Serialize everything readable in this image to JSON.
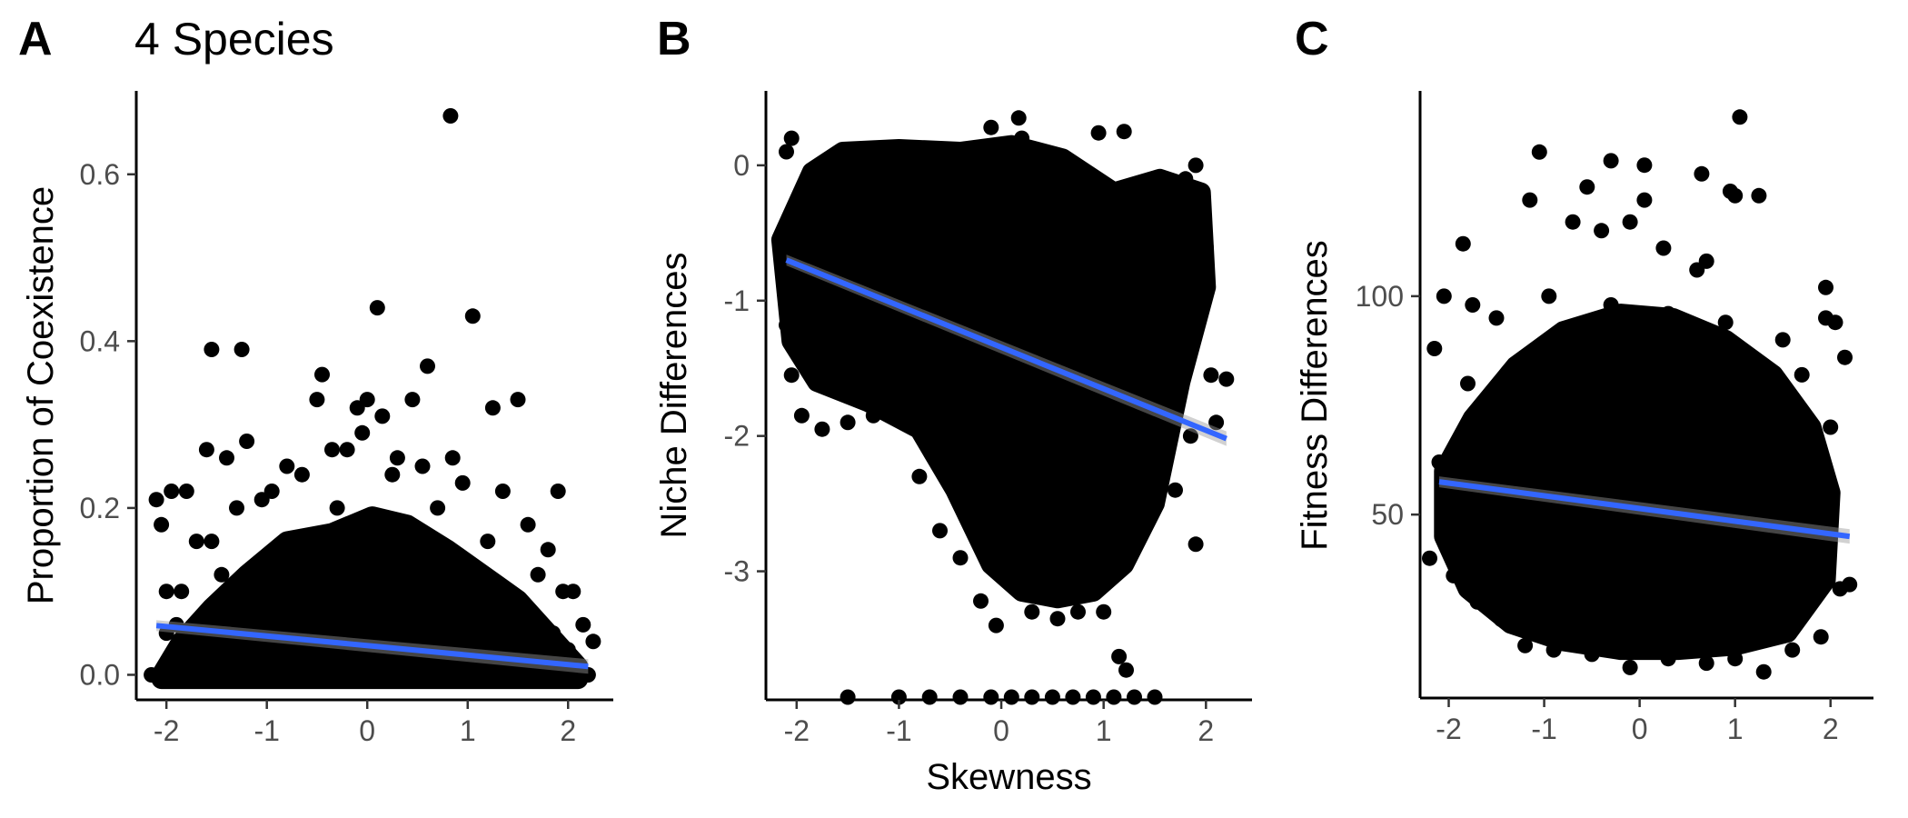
{
  "figure": {
    "title": "4 Species",
    "xlabel": "Skewness"
  },
  "style": {
    "point_color": "#000000",
    "fit_line_color": "#3366FF",
    "ci_band_color": "#999999",
    "axis_color": "#000000",
    "tick_label_color": "#4D4D4D"
  },
  "chart_data": [
    {
      "panel": "A",
      "type": "scatter",
      "title": "4 Species",
      "xlabel": "",
      "ylabel": "Proportion of Coexistence",
      "xlim": [
        -2.3,
        2.45
      ],
      "ylim": [
        -0.03,
        0.7
      ],
      "xticks": [
        -2,
        -1,
        0,
        1,
        2
      ],
      "xtick_labels": [
        "-2",
        "-1",
        "0",
        "1",
        "2"
      ],
      "yticks": [
        0.0,
        0.2,
        0.4,
        0.6
      ],
      "ytick_labels": [
        "0.0",
        "0.2",
        "0.4",
        "0.6"
      ],
      "grid": false,
      "fit_line": {
        "x": [
          -2.1,
          2.2
        ],
        "y": [
          0.059,
          0.01
        ]
      },
      "points": [
        [
          0.83,
          0.67
        ],
        [
          0.1,
          0.44
        ],
        [
          1.05,
          0.43
        ],
        [
          -1.55,
          0.39
        ],
        [
          -1.25,
          0.39
        ],
        [
          -0.45,
          0.36
        ],
        [
          0.6,
          0.37
        ],
        [
          -0.5,
          0.33
        ],
        [
          0.0,
          0.33
        ],
        [
          0.45,
          0.33
        ],
        [
          1.25,
          0.32
        ],
        [
          1.5,
          0.33
        ],
        [
          -0.1,
          0.32
        ],
        [
          0.15,
          0.31
        ],
        [
          -0.05,
          0.29
        ],
        [
          0.85,
          0.26
        ],
        [
          -0.35,
          0.27
        ],
        [
          -0.2,
          0.27
        ],
        [
          -1.6,
          0.27
        ],
        [
          -1.4,
          0.26
        ],
        [
          -1.2,
          0.28
        ],
        [
          1.9,
          0.22
        ],
        [
          -2.1,
          0.21
        ],
        [
          -1.95,
          0.22
        ],
        [
          -1.8,
          0.22
        ],
        [
          0.3,
          0.26
        ],
        [
          0.55,
          0.25
        ],
        [
          -0.8,
          0.25
        ],
        [
          1.35,
          0.22
        ],
        [
          -0.95,
          0.22
        ],
        [
          0.95,
          0.23
        ],
        [
          -1.05,
          0.21
        ],
        [
          -0.65,
          0.24
        ],
        [
          0.25,
          0.24
        ],
        [
          1.6,
          0.18
        ],
        [
          -2.05,
          0.18
        ],
        [
          -1.7,
          0.16
        ],
        [
          -1.55,
          0.16
        ],
        [
          1.7,
          0.12
        ],
        [
          1.8,
          0.15
        ],
        [
          1.95,
          0.1
        ],
        [
          2.05,
          0.1
        ],
        [
          -2.0,
          0.1
        ],
        [
          -1.85,
          0.1
        ],
        [
          2.15,
          0.06
        ],
        [
          2.25,
          0.04
        ],
        [
          -2.0,
          0.05
        ],
        [
          -1.9,
          0.06
        ],
        [
          1.85,
          0.05
        ],
        [
          2.0,
          0.03
        ],
        [
          -2.15,
          0.0
        ],
        [
          2.2,
          0.0
        ],
        [
          -1.75,
          0.03
        ],
        [
          1.55,
          0.02
        ],
        [
          -1.3,
          0.2
        ],
        [
          -0.3,
          0.2
        ],
        [
          0.7,
          0.2
        ],
        [
          0.4,
          0.18
        ],
        [
          1.2,
          0.16
        ],
        [
          -0.6,
          0.14
        ],
        [
          -1.45,
          0.12
        ],
        [
          0.2,
          0.15
        ],
        [
          1.4,
          0.1
        ],
        [
          -1.15,
          0.08
        ]
      ],
      "dense_region": [
        [
          -2.05,
          0.0
        ],
        [
          -1.85,
          0.04
        ],
        [
          -1.55,
          0.08
        ],
        [
          -1.2,
          0.12
        ],
        [
          -0.8,
          0.16
        ],
        [
          -0.35,
          0.17
        ],
        [
          0.05,
          0.19
        ],
        [
          0.4,
          0.18
        ],
        [
          0.8,
          0.15
        ],
        [
          1.15,
          0.12
        ],
        [
          1.5,
          0.09
        ],
        [
          1.8,
          0.05
        ],
        [
          2.1,
          0.01
        ],
        [
          2.1,
          -0.005
        ],
        [
          -2.05,
          -0.005
        ]
      ]
    },
    {
      "panel": "B",
      "type": "scatter",
      "title": "",
      "xlabel": "Skewness",
      "ylabel": "Niche Differences",
      "xlim": [
        -2.3,
        2.45
      ],
      "ylim": [
        -3.95,
        0.55
      ],
      "xticks": [
        -2,
        -1,
        0,
        1,
        2
      ],
      "xtick_labels": [
        "-2",
        "-1",
        "0",
        "1",
        "2"
      ],
      "yticks": [
        0,
        -1,
        -2,
        -3
      ],
      "ytick_labels": [
        "0",
        "-1",
        "-2",
        "-3"
      ],
      "grid": false,
      "fit_line": {
        "x": [
          -2.1,
          2.2
        ],
        "y": [
          -0.7,
          -2.02
        ]
      },
      "points": [
        [
          -2.05,
          0.2
        ],
        [
          -2.1,
          0.1
        ],
        [
          0.17,
          0.35
        ],
        [
          -0.1,
          0.28
        ],
        [
          0.95,
          0.24
        ],
        [
          1.2,
          0.25
        ],
        [
          0.2,
          0.2
        ],
        [
          -2.15,
          -0.6
        ],
        [
          -2.1,
          -1.18
        ],
        [
          -2.05,
          -1.55
        ],
        [
          -1.95,
          -1.85
        ],
        [
          -1.75,
          -1.95
        ],
        [
          -1.5,
          -1.9
        ],
        [
          -1.25,
          -1.85
        ],
        [
          1.15,
          -3.63
        ],
        [
          1.22,
          -3.73
        ],
        [
          1.9,
          -2.8
        ],
        [
          2.05,
          -1.55
        ],
        [
          2.2,
          -1.58
        ],
        [
          1.9,
          0.0
        ],
        [
          1.8,
          -0.1
        ],
        [
          1.95,
          -0.3
        ],
        [
          2.0,
          -0.6
        ],
        [
          -0.2,
          -3.22
        ],
        [
          -0.05,
          -3.4
        ],
        [
          0.3,
          -3.3
        ],
        [
          0.55,
          -3.35
        ],
        [
          0.75,
          -3.3
        ],
        [
          1.0,
          -3.3
        ],
        [
          -1.5,
          -3.93
        ],
        [
          -1.0,
          -3.93
        ],
        [
          -0.7,
          -3.93
        ],
        [
          -0.4,
          -3.93
        ],
        [
          -0.1,
          -3.93
        ],
        [
          0.1,
          -3.93
        ],
        [
          0.3,
          -3.93
        ],
        [
          0.5,
          -3.93
        ],
        [
          0.7,
          -3.93
        ],
        [
          0.9,
          -3.93
        ],
        [
          1.1,
          -3.93
        ],
        [
          1.3,
          -3.93
        ],
        [
          1.5,
          -3.93
        ],
        [
          -1.9,
          -0.9
        ],
        [
          -1.7,
          -0.5
        ],
        [
          -1.4,
          -0.2
        ],
        [
          -1.1,
          0.05
        ],
        [
          1.6,
          -2.2
        ],
        [
          1.85,
          -2.0
        ],
        [
          2.1,
          -1.9
        ],
        [
          -0.6,
          -2.7
        ],
        [
          -0.4,
          -2.9
        ],
        [
          1.4,
          -2.6
        ],
        [
          1.7,
          -2.4
        ],
        [
          -0.8,
          -2.3
        ]
      ],
      "dense_region": [
        [
          -2.15,
          -0.55
        ],
        [
          -1.85,
          -0.05
        ],
        [
          -1.55,
          0.1
        ],
        [
          -1.0,
          0.12
        ],
        [
          -0.4,
          0.1
        ],
        [
          0.1,
          0.15
        ],
        [
          0.6,
          0.05
        ],
        [
          1.1,
          -0.2
        ],
        [
          1.55,
          -0.1
        ],
        [
          1.95,
          -0.2
        ],
        [
          2.0,
          -0.9
        ],
        [
          1.75,
          -1.6
        ],
        [
          1.5,
          -2.5
        ],
        [
          1.2,
          -2.95
        ],
        [
          0.9,
          -3.15
        ],
        [
          0.55,
          -3.2
        ],
        [
          0.2,
          -3.15
        ],
        [
          -0.1,
          -2.95
        ],
        [
          -0.45,
          -2.4
        ],
        [
          -0.8,
          -1.95
        ],
        [
          -1.3,
          -1.75
        ],
        [
          -1.8,
          -1.6
        ],
        [
          -2.05,
          -1.3
        ]
      ]
    },
    {
      "panel": "C",
      "type": "scatter",
      "title": "",
      "xlabel": "",
      "ylabel": "Fitness Differences",
      "xlim": [
        -2.3,
        2.45
      ],
      "ylim": [
        8,
        147
      ],
      "xticks": [
        -2,
        -1,
        0,
        1,
        2
      ],
      "xtick_labels": [
        "-2",
        "-1",
        "0",
        "1",
        "2"
      ],
      "yticks": [
        50,
        100
      ],
      "ytick_labels": [
        "50",
        "100"
      ],
      "grid": false,
      "fit_line": {
        "x": [
          -2.1,
          2.2
        ],
        "y": [
          57.5,
          45
        ]
      },
      "points": [
        [
          1.05,
          141
        ],
        [
          -1.05,
          133
        ],
        [
          -0.3,
          131
        ],
        [
          0.65,
          128
        ],
        [
          0.05,
          130
        ],
        [
          0.95,
          124
        ],
        [
          -1.15,
          122
        ],
        [
          0.05,
          122
        ],
        [
          1.0,
          123
        ],
        [
          -0.55,
          125
        ],
        [
          -1.85,
          112
        ],
        [
          -0.7,
          117
        ],
        [
          -0.4,
          115
        ],
        [
          -0.1,
          117
        ],
        [
          0.25,
          111
        ],
        [
          0.6,
          106
        ],
        [
          0.7,
          108
        ],
        [
          1.25,
          123
        ],
        [
          -2.05,
          100
        ],
        [
          -1.75,
          98
        ],
        [
          -1.5,
          95
        ],
        [
          2.05,
          94
        ],
        [
          1.95,
          95
        ],
        [
          2.15,
          86
        ],
        [
          1.95,
          102
        ],
        [
          -2.15,
          88
        ],
        [
          -2.1,
          62
        ],
        [
          -2.05,
          56
        ],
        [
          -2.2,
          40
        ],
        [
          -2.05,
          44
        ],
        [
          -1.95,
          36
        ],
        [
          -1.7,
          30
        ],
        [
          -1.45,
          26
        ],
        [
          -1.2,
          20
        ],
        [
          -0.9,
          19
        ],
        [
          -0.5,
          18
        ],
        [
          -0.1,
          15
        ],
        [
          0.3,
          17
        ],
        [
          0.7,
          16
        ],
        [
          1.0,
          17
        ],
        [
          1.3,
          14
        ],
        [
          1.6,
          19
        ],
        [
          1.9,
          22
        ],
        [
          2.1,
          33
        ],
        [
          2.2,
          34
        ],
        [
          -0.95,
          100
        ],
        [
          -0.3,
          98
        ],
        [
          0.3,
          96
        ],
        [
          0.9,
          94
        ],
        [
          1.5,
          90
        ],
        [
          1.7,
          82
        ],
        [
          2.0,
          70
        ],
        [
          -1.8,
          80
        ],
        [
          -1.6,
          72
        ],
        [
          1.8,
          30
        ],
        [
          -1.0,
          26
        ]
      ],
      "dense_region": [
        [
          -2.05,
          60
        ],
        [
          -1.75,
          72
        ],
        [
          -1.3,
          84
        ],
        [
          -0.8,
          92
        ],
        [
          -0.2,
          96
        ],
        [
          0.35,
          95
        ],
        [
          0.9,
          90
        ],
        [
          1.4,
          82
        ],
        [
          1.8,
          70
        ],
        [
          2.0,
          55
        ],
        [
          1.95,
          35
        ],
        [
          1.55,
          23
        ],
        [
          1.0,
          20
        ],
        [
          0.4,
          19
        ],
        [
          -0.2,
          19
        ],
        [
          -0.8,
          21
        ],
        [
          -1.35,
          25
        ],
        [
          -1.8,
          33
        ],
        [
          -2.05,
          45
        ]
      ]
    }
  ]
}
